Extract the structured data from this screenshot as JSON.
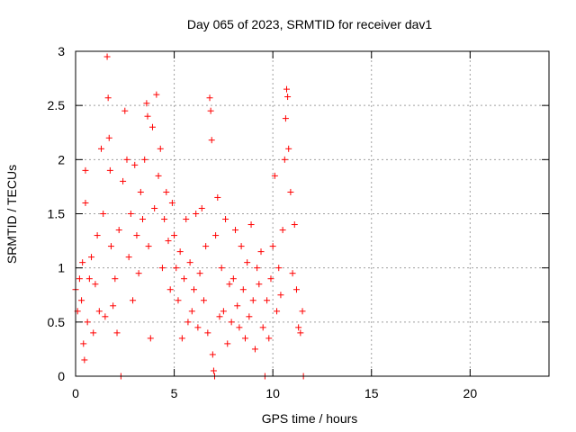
{
  "chart_data": {
    "type": "scatter",
    "title": "Day 065 of 2023, SRMTID for receiver dav1",
    "xlabel": "GPS time / hours",
    "ylabel": "SRMTID / TECUs",
    "xlim": [
      0,
      24
    ],
    "ylim": [
      0,
      3
    ],
    "xticks": [
      0,
      5,
      10,
      15,
      20
    ],
    "yticks": [
      0,
      0.5,
      1,
      1.5,
      2,
      2.5,
      3
    ],
    "xtick_labels": [
      "0",
      "5",
      "10",
      "15",
      "20"
    ],
    "ytick_labels": [
      "0",
      "0.5",
      "1",
      "1.5",
      "2",
      "2.5",
      "3"
    ],
    "grid": true,
    "marker": "plus",
    "marker_color": "#ff0000",
    "series": [
      {
        "name": "dav1",
        "description": "Dense scatter of SRMTID values between ~0 and ~3 TECUs, data spanning roughly 0 to 11.6 hours",
        "data_x_range": [
          0,
          11.6
        ],
        "points": [
          [
            0.0,
            0.8
          ],
          [
            0.1,
            0.6
          ],
          [
            0.2,
            0.9
          ],
          [
            0.3,
            0.7
          ],
          [
            0.35,
            1.05
          ],
          [
            0.4,
            0.3
          ],
          [
            0.45,
            0.15
          ],
          [
            0.5,
            1.9
          ],
          [
            0.5,
            1.6
          ],
          [
            0.6,
            0.5
          ],
          [
            0.7,
            0.9
          ],
          [
            0.8,
            1.1
          ],
          [
            0.9,
            0.4
          ],
          [
            1.0,
            0.85
          ],
          [
            1.1,
            1.3
          ],
          [
            1.2,
            0.6
          ],
          [
            1.3,
            2.1
          ],
          [
            1.4,
            1.5
          ],
          [
            1.5,
            0.55
          ],
          [
            1.6,
            2.95
          ],
          [
            1.65,
            2.57
          ],
          [
            1.7,
            2.2
          ],
          [
            1.75,
            1.9
          ],
          [
            1.8,
            1.2
          ],
          [
            1.9,
            0.65
          ],
          [
            2.0,
            0.9
          ],
          [
            2.1,
            0.4
          ],
          [
            2.2,
            1.35
          ],
          [
            2.3,
            0.0
          ],
          [
            2.4,
            1.8
          ],
          [
            2.5,
            2.45
          ],
          [
            2.6,
            2.0
          ],
          [
            2.7,
            1.1
          ],
          [
            2.8,
            1.5
          ],
          [
            2.9,
            0.7
          ],
          [
            3.0,
            1.95
          ],
          [
            3.1,
            1.3
          ],
          [
            3.2,
            0.95
          ],
          [
            3.3,
            1.7
          ],
          [
            3.4,
            1.45
          ],
          [
            3.5,
            2.0
          ],
          [
            3.6,
            2.52
          ],
          [
            3.65,
            2.4
          ],
          [
            3.7,
            1.2
          ],
          [
            3.8,
            0.35
          ],
          [
            3.9,
            2.3
          ],
          [
            4.0,
            1.55
          ],
          [
            4.1,
            2.6
          ],
          [
            4.2,
            1.85
          ],
          [
            4.3,
            2.1
          ],
          [
            4.4,
            1.0
          ],
          [
            4.5,
            1.45
          ],
          [
            4.6,
            1.7
          ],
          [
            4.7,
            1.25
          ],
          [
            4.8,
            0.8
          ],
          [
            4.9,
            1.6
          ],
          [
            5.0,
            1.3
          ],
          [
            5.1,
            1.0
          ],
          [
            5.2,
            0.7
          ],
          [
            5.3,
            1.15
          ],
          [
            5.4,
            0.35
          ],
          [
            5.5,
            0.9
          ],
          [
            5.6,
            1.45
          ],
          [
            5.7,
            0.5
          ],
          [
            5.8,
            1.05
          ],
          [
            5.9,
            0.6
          ],
          [
            6.0,
            0.8
          ],
          [
            6.1,
            1.5
          ],
          [
            6.2,
            0.45
          ],
          [
            6.3,
            0.95
          ],
          [
            6.4,
            1.55
          ],
          [
            6.5,
            0.7
          ],
          [
            6.6,
            1.2
          ],
          [
            6.7,
            0.4
          ],
          [
            6.8,
            2.57
          ],
          [
            6.85,
            2.45
          ],
          [
            6.9,
            2.18
          ],
          [
            6.95,
            0.2
          ],
          [
            7.0,
            0.05
          ],
          [
            7.05,
            0.0
          ],
          [
            7.1,
            1.3
          ],
          [
            7.2,
            1.65
          ],
          [
            7.3,
            0.55
          ],
          [
            7.4,
            1.0
          ],
          [
            7.5,
            0.6
          ],
          [
            7.6,
            1.45
          ],
          [
            7.7,
            0.3
          ],
          [
            7.8,
            0.85
          ],
          [
            7.9,
            0.5
          ],
          [
            8.0,
            0.9
          ],
          [
            8.1,
            1.35
          ],
          [
            8.2,
            0.65
          ],
          [
            8.3,
            0.45
          ],
          [
            8.4,
            1.2
          ],
          [
            8.5,
            0.8
          ],
          [
            8.6,
            0.35
          ],
          [
            8.7,
            1.05
          ],
          [
            8.8,
            0.55
          ],
          [
            8.9,
            1.4
          ],
          [
            9.0,
            0.7
          ],
          [
            9.1,
            0.25
          ],
          [
            9.2,
            1.0
          ],
          [
            9.3,
            0.85
          ],
          [
            9.4,
            1.15
          ],
          [
            9.5,
            0.45
          ],
          [
            9.6,
            0.0
          ],
          [
            9.7,
            0.7
          ],
          [
            9.8,
            0.35
          ],
          [
            9.9,
            0.9
          ],
          [
            10.0,
            1.2
          ],
          [
            10.1,
            1.85
          ],
          [
            10.2,
            0.6
          ],
          [
            10.3,
            1.0
          ],
          [
            10.4,
            0.75
          ],
          [
            10.5,
            1.35
          ],
          [
            10.6,
            2.0
          ],
          [
            10.65,
            2.38
          ],
          [
            10.7,
            2.65
          ],
          [
            10.75,
            2.58
          ],
          [
            10.8,
            2.1
          ],
          [
            10.9,
            1.7
          ],
          [
            11.0,
            0.95
          ],
          [
            11.1,
            1.4
          ],
          [
            11.2,
            0.8
          ],
          [
            11.3,
            0.45
          ],
          [
            11.4,
            0.4
          ],
          [
            11.5,
            0.6
          ],
          [
            11.55,
            0.0
          ]
        ]
      }
    ]
  }
}
